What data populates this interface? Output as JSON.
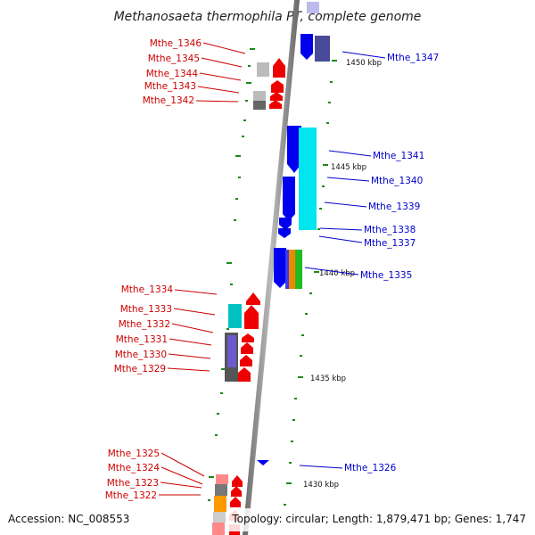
{
  "title": "Methanosaeta thermophila PT, complete genome",
  "footer": {
    "accession": "Accession: NC_008553",
    "topology": "Topology: circular; Length: 1,879,471 bp; Genes: 1,747"
  },
  "colors": {
    "forward_label": "#cc0000",
    "reverse_label": "#0000cc",
    "backbone": "#888888",
    "tick": "#1a8a1a",
    "forward_gene": "#ee0000",
    "reverse_gene": "#0000ee"
  },
  "kbp_markers": [
    "1450 kbp",
    "1445 kbp",
    "1440 kbp",
    "1435 kbp",
    "1430 kbp"
  ],
  "left_labels": [
    "Mthe_1346",
    "Mthe_1345",
    "Mthe_1344",
    "Mthe_1343",
    "Mthe_1342",
    "Mthe_1334",
    "Mthe_1333",
    "Mthe_1332",
    "Mthe_1331",
    "Mthe_1330",
    "Mthe_1329",
    "Mthe_1325",
    "Mthe_1324",
    "Mthe_1323",
    "Mthe_1322"
  ],
  "right_labels": [
    "Mthe_1347",
    "Mthe_1341",
    "Mthe_1340",
    "Mthe_1339",
    "Mthe_1338",
    "Mthe_1337",
    "Mthe_1335",
    "Mthe_1326"
  ]
}
